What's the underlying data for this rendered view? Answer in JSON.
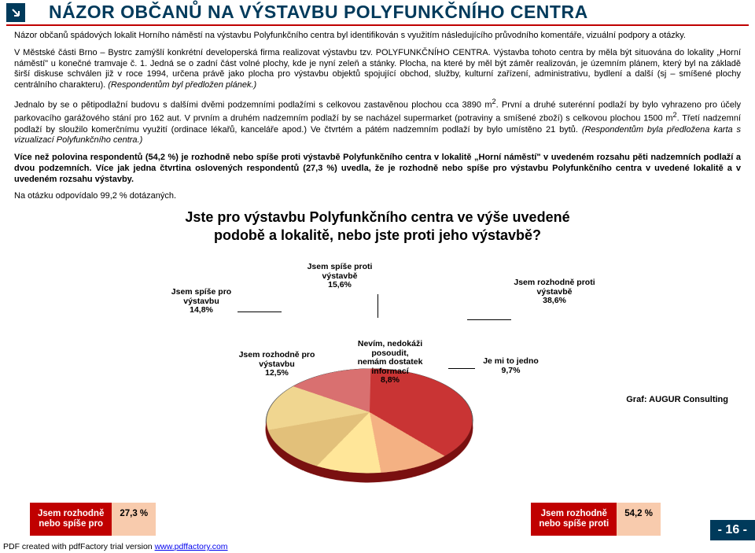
{
  "title": "NÁZOR OBČANŮ NA VÝSTAVBU POLYFUNKČNÍHO CENTRA",
  "intro": "Názor občanů spádových lokalit Horního náměstí na výstavbu Polyfunkčního centra byl identifikován s využitím následujícího průvodního komentáře, vizuální podpory a otázky.",
  "para1_a": "V Městské části Brno – Bystrc zamýšlí konkrétní developerská firma realizovat výstavbu tzv. POLYFUNKČNÍHO CENTRA. Výstavba tohoto centra by měla být situována do lokality „Horní náměstí\" u konečné tramvaje č. 1. Jedná se o zadní část volné plochy, kde je nyní zeleň a stánky. Plocha, na které by měl být záměr realizován, je územním plánem, který byl na základě širší diskuse schválen již v roce 1994, určena právě jako plocha pro výstavbu objektů spojující obchod, služby, kulturní zařízení, administrativu, bydlení a další (sj – smíšené plochy centrálního charakteru). ",
  "para1_b": "(Respondentům byl předložen plánek.)",
  "para2_a": "Jednalo by se o pětipodlažní budovu s dalšími dvěmi podzemními podlažími s celkovou zastavěnou plochou cca 3890 m",
  "para2_b": ". První a druhé suterénní podlaží by bylo vyhrazeno pro účely parkovacího garážového stání pro 162 aut. V prvním a druhém nadzemním podlaží by se nacházel supermarket (potraviny a smíšené zboží) s celkovou plochou 1500 m",
  "para2_c": ". Třetí nadzemní podlaží by sloužilo komerčnímu využití (ordinace lékařů, kanceláře apod.) Ve čtvrtém a pátém nadzemním podlaží by bylo umístěno 21 bytů. ",
  "para2_d": "(Respondentům byla předložena karta s vizualizací Polyfunkčního centra.)",
  "bold_para": "Více než polovina respondentů (54,2 %) je rozhodně nebo spíše proti výstavbě Polyfunkčního centra v lokalitě „Horní náměstí\" v uvedeném rozsahu pěti nadzemních podlaží a dvou podzemních. Více jak jedna čtvrtina oslovených respondentů (27,3 %) uvedla, že je rozhodně nebo spíše pro výstavbu Polyfunkčního centra v uvedené lokalitě a v uvedeném rozsahu výstavby.",
  "responserate": "Na otázku odpovídalo 99,2 % dotázaných.",
  "chart": {
    "title": "Jste pro výstavbu Polyfunkčního centra ve výše uvedené podobě a lokalitě, nebo jste proti jeho výstavbě?",
    "type": "pie",
    "slices": [
      {
        "label": "Jsem rozhodně proti výstavbě",
        "value": 38.6,
        "text": "38,6%",
        "color": "#c93434"
      },
      {
        "label": "Je mi to jedno",
        "value": 9.7,
        "text": "9,7%",
        "color": "#f4b183"
      },
      {
        "label": "Nevím, nedokáži posoudit, nemám dostatek informací",
        "value": 8.8,
        "text": "8,8%",
        "color": "#ffe699"
      },
      {
        "label": "Jsem rozhodně pro výstavbu",
        "value": 12.5,
        "text": "12,5%",
        "color": "#e2c07a"
      },
      {
        "label": "Jsem spíše pro výstavbu",
        "value": 14.8,
        "text": "14,8%",
        "color": "#f0d690"
      },
      {
        "label": "Jsem spíše proti výstavbě",
        "value": 15.6,
        "text": "15,6%",
        "color": "#d97070"
      }
    ],
    "attribution": "Graf: AUGUR Consulting"
  },
  "summary": {
    "pro": {
      "label": "Jsem rozhodně nebo spíše pro",
      "value": "27,3 %",
      "bg_label": "#c00000",
      "bg_val": "#f8cbad"
    },
    "proti": {
      "label": "Jsem rozhodně nebo spíše proti",
      "value": "54,2 %",
      "bg_label": "#c00000",
      "bg_val": "#f8cbad"
    }
  },
  "page_number": "- 16 -",
  "pdf_footer_text": "PDF created with pdfFactory trial version ",
  "pdf_footer_link": "www.pdffactory.com"
}
